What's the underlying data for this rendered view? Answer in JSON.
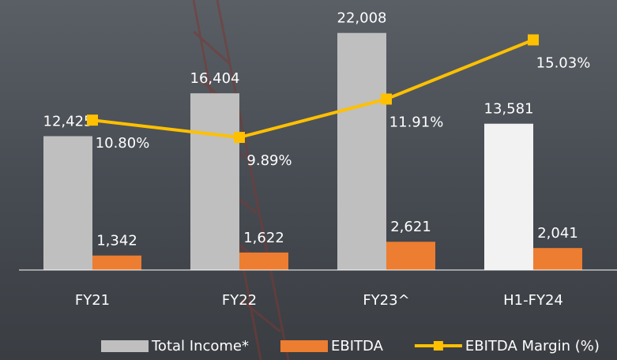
{
  "chart_data": {
    "type": "bar-line",
    "categories": [
      "FY21",
      "FY22",
      "FY23^",
      "H1-FY24"
    ],
    "series": [
      {
        "name": "Total Income*",
        "type": "bar",
        "color": "#bfbfbf",
        "colors": [
          "#bfbfbf",
          "#bfbfbf",
          "#bfbfbf",
          "#f2f2f2"
        ],
        "values": [
          12425,
          16404,
          22008,
          13581
        ],
        "value_labels": [
          "12,425",
          "16,404",
          "22,008",
          "13,581"
        ]
      },
      {
        "name": "EBITDA",
        "type": "bar",
        "color": "#ed7d31",
        "values": [
          1342,
          1622,
          2621,
          2041
        ],
        "value_labels": [
          "1,342",
          "1,622",
          "2,621",
          "2,041"
        ]
      },
      {
        "name": "EBITDA Margin (%)",
        "type": "line",
        "axis": "y2",
        "color": "#ffc000",
        "values": [
          10.8,
          9.89,
          11.91,
          15.03
        ],
        "value_labels": [
          "10.80%",
          "9.89%",
          "11.91%",
          "15.03%"
        ]
      }
    ],
    "ylim": [
      0,
      23600
    ],
    "y2lim": [
      2.9,
      16.3
    ],
    "legend": "bottom"
  }
}
